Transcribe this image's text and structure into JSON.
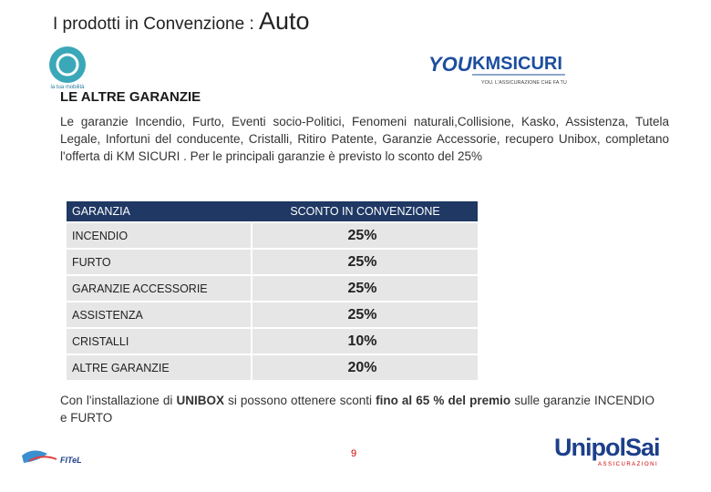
{
  "header": {
    "title": "I prodotti in Convenzione : ",
    "product": "Auto"
  },
  "logos": {
    "left_caption": "la tua mobilità",
    "right_prefix": "YOU",
    "right_name": "KMSICURI",
    "right_tagline": "YOU. L'ASSICURAZIONE CHE FA TU",
    "bottom_left": "FITeL",
    "bottom_right": "UnipolSai",
    "bottom_right_sub": "ASSICURAZIONI"
  },
  "section": {
    "heading": "LE ALTRE GARANZIE",
    "text": "Le garanzie Incendio, Furto, Eventi socio-Politici, Fenomeni naturali,Collisione, Kasko, Assistenza, Tutela Legale, Infortuni del conducente, Cristalli, Ritiro Patente, Garanzie Accessorie, recupero Unibox, completano l'offerta di KM SICURI . Per le principali garanzie è previsto lo sconto del 25%"
  },
  "table": {
    "header": [
      "GARANZIA",
      "SCONTO IN CONVENZIONE"
    ],
    "rows": [
      [
        "INCENDIO",
        "25%"
      ],
      [
        "FURTO",
        "25%"
      ],
      [
        "GARANZIE ACCESSORIE",
        "25%"
      ],
      [
        "ASSISTENZA",
        "25%"
      ],
      [
        "CRISTALLI",
        "10%"
      ],
      [
        "ALTRE GARANZIE",
        "20%"
      ]
    ]
  },
  "note": [
    "Con l'installazione di ",
    "UNIBOX",
    " si possono ottenere sconti ",
    "fino al 65 % del premio",
    " sulle garanzie INCENDIO e FURTO"
  ],
  "page_number": "9"
}
